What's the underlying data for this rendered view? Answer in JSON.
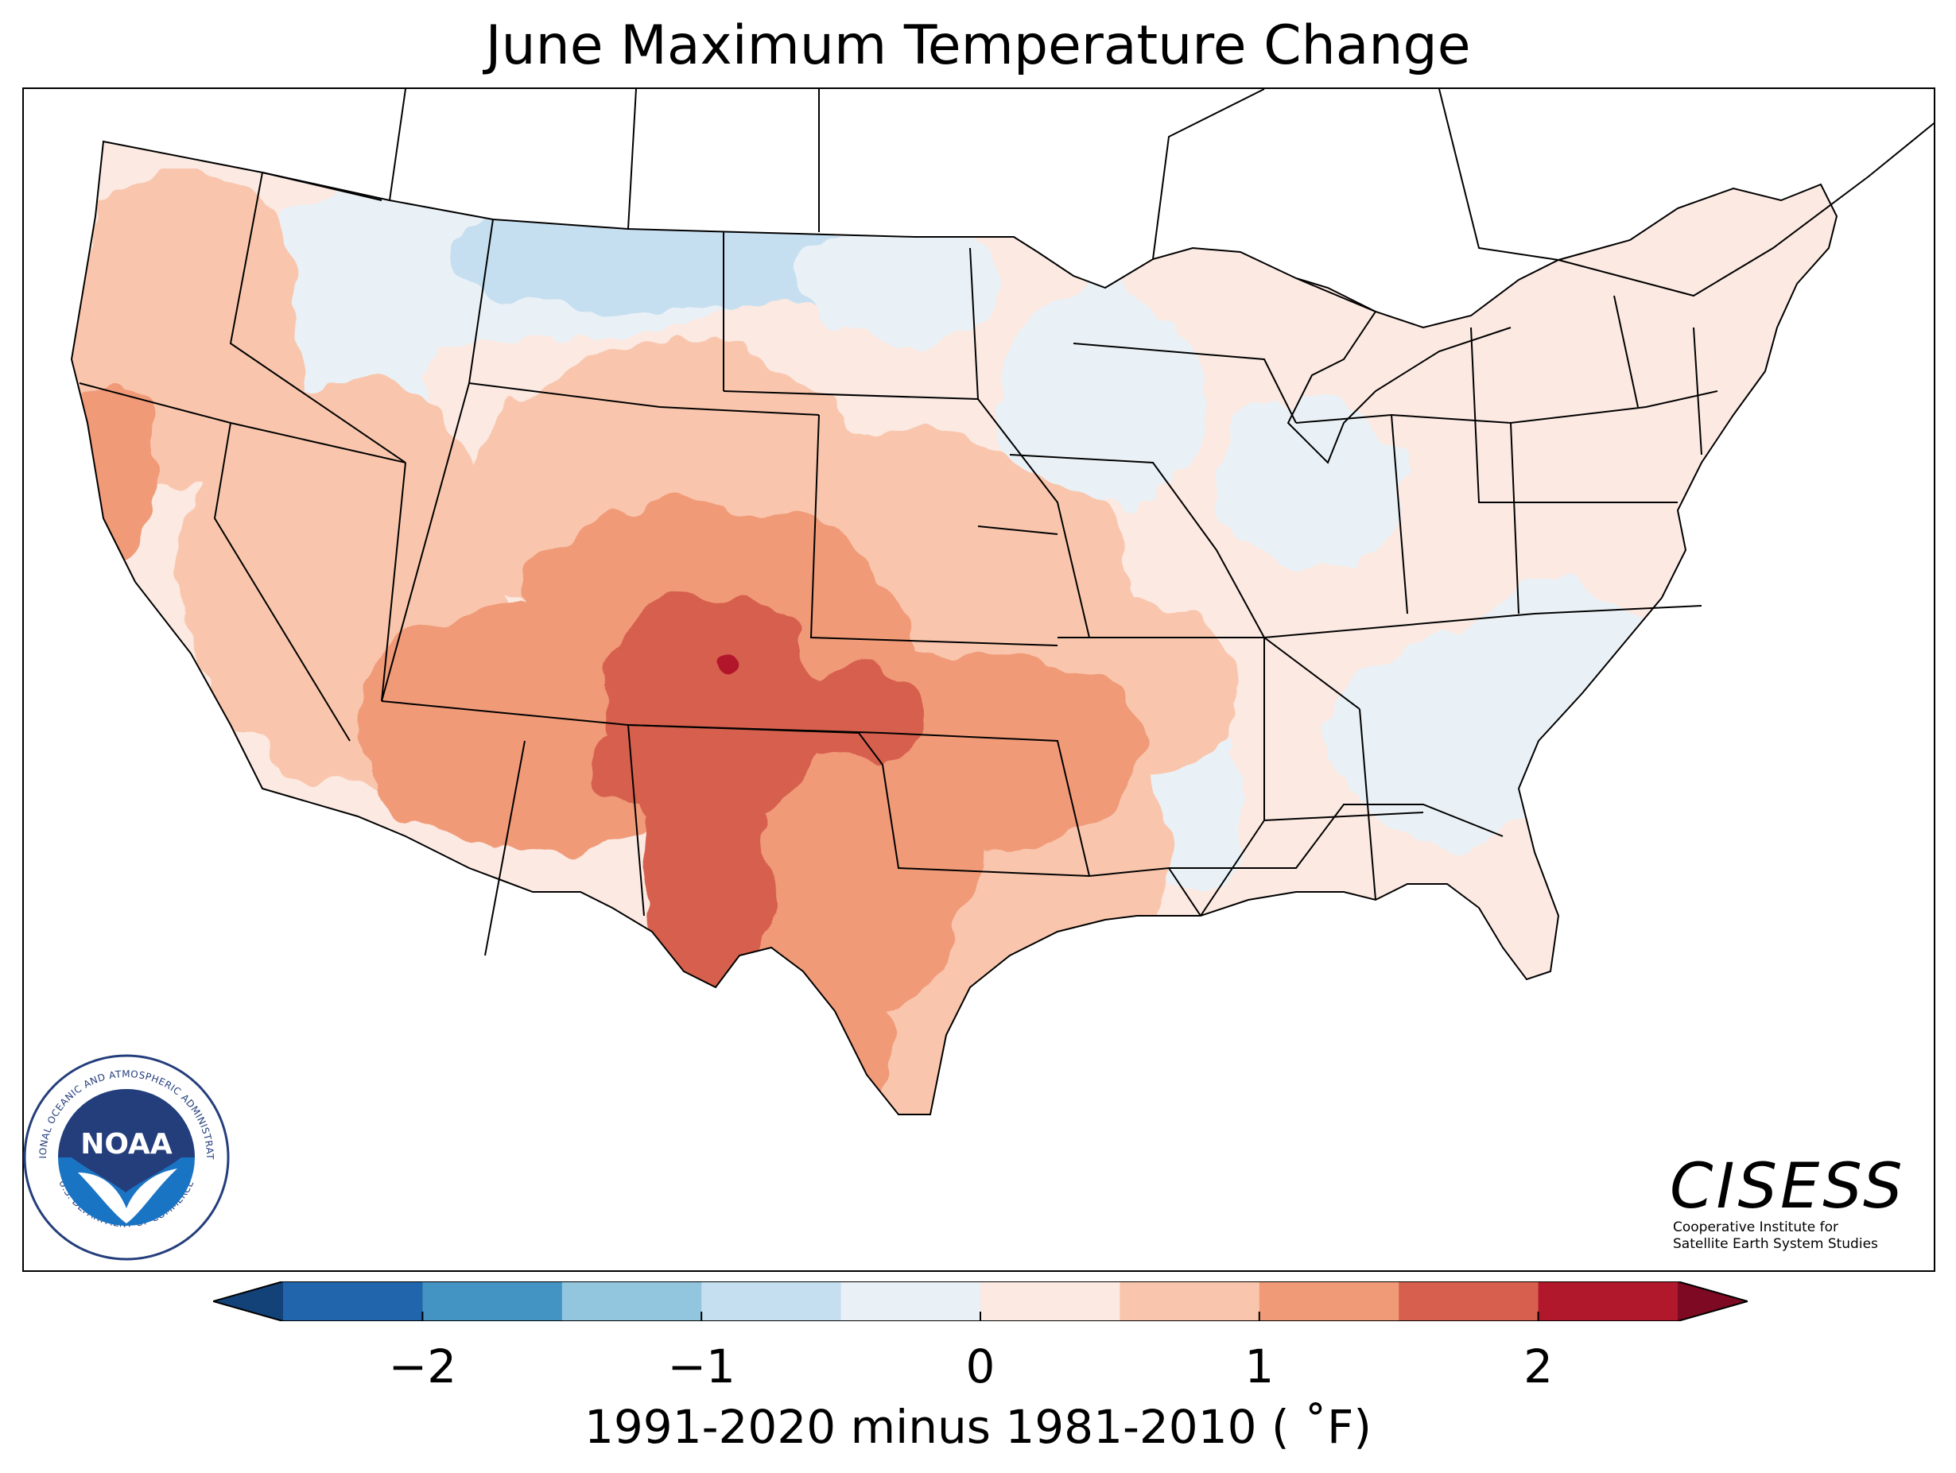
{
  "title": "June Maximum Temperature Change",
  "colorbar": {
    "label": "1991-2020 minus 1981-2010 ( °F)",
    "label_text": "1991-2020 minus 1981-2010 ( ˚F)",
    "min": -2.5,
    "max": 2.5,
    "step": 0.5,
    "extend": "both",
    "colors": [
      "#2166ac",
      "#4393c3",
      "#92c5de",
      "#c6dff0",
      "#eaf1f6",
      "#fbe9e2",
      "#f9c6ad",
      "#f09a78",
      "#d6604d",
      "#b2182b"
    ],
    "extend_low_color": "#134278",
    "extend_high_color": "#7d0a22",
    "ticks": [
      {
        "value": -2,
        "label": "−2"
      },
      {
        "value": -1,
        "label": "−1"
      },
      {
        "value": 0,
        "label": "0"
      },
      {
        "value": 1,
        "label": "1"
      },
      {
        "value": 2,
        "label": "2"
      }
    ]
  },
  "map": {
    "region": "Contiguous United States",
    "ocean_color": "#ffffff",
    "border_color": "#000000"
  },
  "logos": {
    "noaa": {
      "name": "NOAA",
      "ring_text_top": "NATIONAL OCEANIC AND ATMOSPHERIC ADMINISTRATION",
      "ring_text_bottom": "U.S. DEPARTMENT OF COMMERCE",
      "colors": {
        "navy": "#243e7c",
        "blue": "#1a74c4",
        "ring": "#ffffff"
      }
    },
    "cisess": {
      "name": "CISESS",
      "line1": "Cooperative Institute for",
      "line2": "Satellite Earth System Studies"
    }
  }
}
